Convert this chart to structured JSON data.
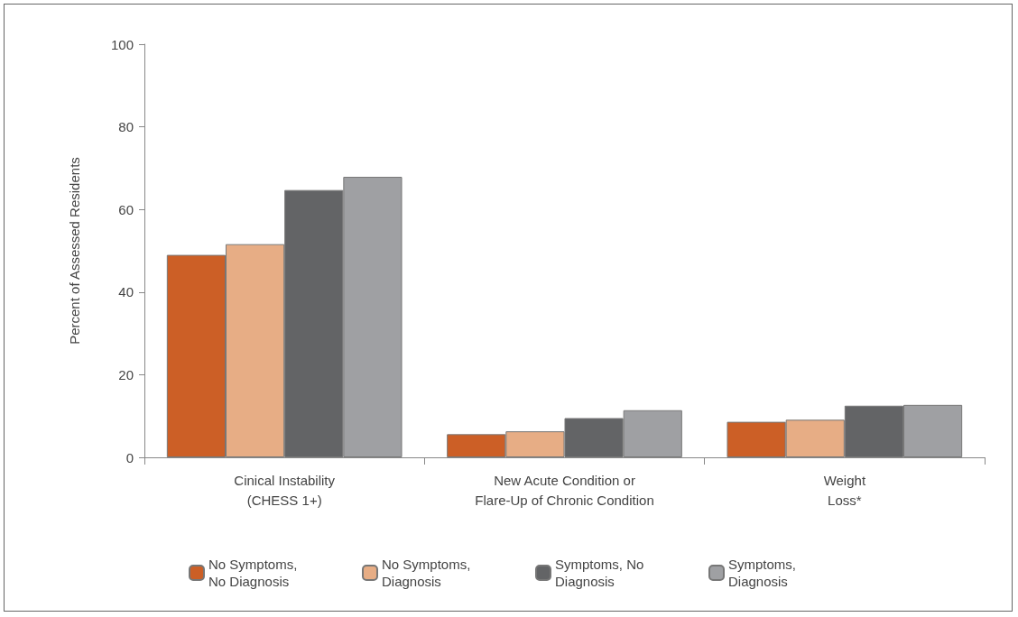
{
  "chart_data": {
    "type": "bar",
    "ylabel": "Percent of Assessed Residents",
    "categories": [
      "Cinical Instability\n(CHESS 1+)",
      "New Acute Condition or\nFlare-Up of Chronic Condition",
      "Weight\nLoss*"
    ],
    "series": [
      {
        "name": "No Symptoms, No Diagnosis",
        "color": "#cc5f26",
        "values": [
          49,
          5.6,
          8.6
        ]
      },
      {
        "name": "No Symptoms, Diagnosis",
        "color": "#e7ad85",
        "values": [
          51.6,
          6.3,
          9.1
        ]
      },
      {
        "name": "Symptoms, No Diagnosis",
        "color": "#636466",
        "values": [
          64.7,
          9.5,
          12.5
        ]
      },
      {
        "name": "Symptoms, Diagnosis",
        "color": "#9fa0a3",
        "values": [
          67.9,
          11.4,
          12.7
        ]
      }
    ],
    "ylim": [
      0,
      100
    ],
    "yticks": [
      0,
      20,
      40,
      60,
      80,
      100
    ],
    "grid": false,
    "legend": "bottom"
  }
}
